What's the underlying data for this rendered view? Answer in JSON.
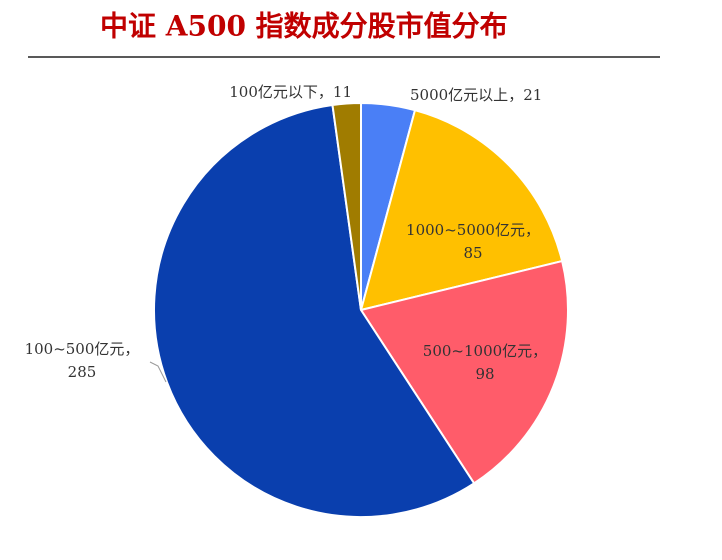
{
  "chart_data": {
    "type": "pie",
    "title": "中证 A500 指数成分股市值分布",
    "categories": [
      "5000亿元以上",
      "1000~5000亿元",
      "500~1000亿元",
      "100~500亿元",
      "100亿元以下"
    ],
    "values": [
      21,
      85,
      98,
      285,
      11
    ],
    "colors": [
      "#4a7ff6",
      "#ffc000",
      "#ff5c6a",
      "#0a3fae",
      "#a07c00"
    ],
    "label_separator": "，"
  }
}
